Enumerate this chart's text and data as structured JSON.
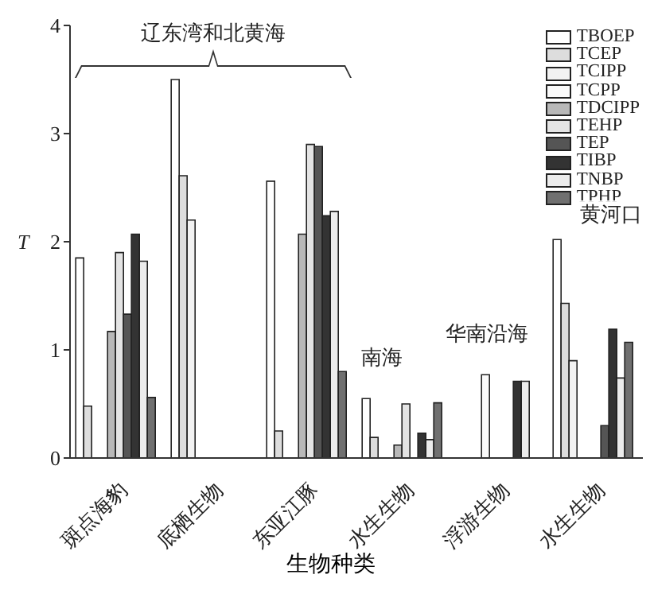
{
  "chart_data": {
    "type": "bar",
    "xlabel": "生物种类",
    "ylabel": "T",
    "categories": [
      "斑点海豹",
      "底栖生物",
      "东亚江豚",
      "水生生物",
      "浮游生物",
      "水生生物"
    ],
    "series": [
      {
        "name": "TBOEP",
        "color": "#ffffff",
        "values": [
          1.85,
          3.5,
          2.56,
          0.55,
          null,
          2.02
        ]
      },
      {
        "name": "TCEP",
        "color": "#dddddd",
        "values": [
          0.48,
          2.61,
          0.25,
          0.19,
          null,
          1.43
        ]
      },
      {
        "name": "TCIPP",
        "color": "#f2f2f2",
        "values": [
          null,
          2.2,
          null,
          null,
          null,
          0.9
        ]
      },
      {
        "name": "TCPP",
        "color": "#fafafa",
        "values": [
          null,
          null,
          null,
          null,
          0.77,
          null
        ]
      },
      {
        "name": "TDCIPP",
        "color": "#b8b8b8",
        "values": [
          1.17,
          null,
          2.07,
          0.12,
          null,
          null
        ]
      },
      {
        "name": "TEHP",
        "color": "#e4e4e4",
        "values": [
          1.9,
          null,
          2.9,
          0.5,
          null,
          null
        ]
      },
      {
        "name": "TEP",
        "color": "#555555",
        "values": [
          1.33,
          null,
          2.88,
          null,
          null,
          0.3
        ]
      },
      {
        "name": "TIBP",
        "color": "#333333",
        "values": [
          2.07,
          null,
          2.24,
          0.23,
          0.71,
          1.19
        ]
      },
      {
        "name": "TNBP",
        "color": "#ececec",
        "values": [
          1.82,
          null,
          2.28,
          0.17,
          0.71,
          0.74
        ]
      },
      {
        "name": "TPHP",
        "color": "#707070",
        "values": [
          0.56,
          null,
          0.8,
          0.51,
          null,
          1.07
        ]
      }
    ],
    "ylim": [
      0,
      4
    ],
    "yticks": [
      0,
      1,
      2,
      3,
      4
    ],
    "legend": "top right",
    "annotations": [
      "辽东湾和北黄海",
      "南海",
      "华南沿海",
      "黄河口"
    ]
  }
}
